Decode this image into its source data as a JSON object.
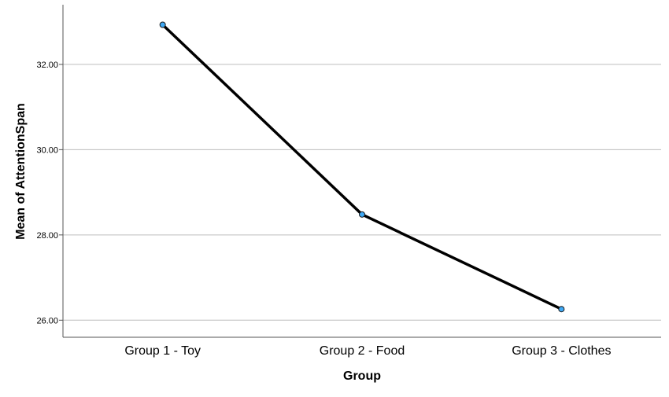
{
  "chart_data": {
    "type": "line",
    "title": "",
    "xlabel": "Group",
    "ylabel": "Mean of AttentionSpan",
    "categories": [
      "Group 1 - Toy",
      "Group 2 - Food",
      "Group 3 - Clothes"
    ],
    "series": [
      {
        "values": [
          32.93,
          28.48,
          26.26
        ]
      }
    ],
    "ylim": [
      25.6,
      33.4
    ],
    "yticks": [
      26.0,
      28.0,
      30.0,
      32.0
    ],
    "ytick_labels": [
      "26.00",
      "28.00",
      "30.00",
      "32.00"
    ],
    "grid": "horizontal",
    "line_color": "#000000",
    "marker_color": "#3fa9f5"
  }
}
